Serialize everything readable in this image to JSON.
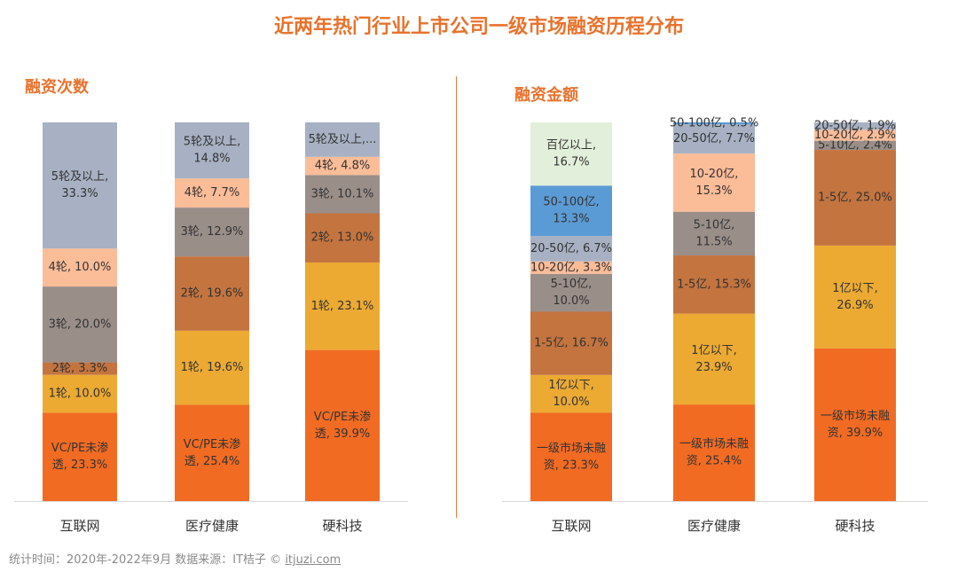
{
  "page": {
    "title": "近两年热门行业上市公司一级市场融资历程分布",
    "footer_prefix": "统计时间：2020年-2022年9月   数据来源：IT桔子 © ",
    "footer_link": "itjuzi.com"
  },
  "colors": {
    "accent": "#e8722c",
    "axis": "#d9d9d9",
    "label": "#333333"
  },
  "chart_data": [
    {
      "type": "bar",
      "stacked": true,
      "percent": true,
      "title": "融资次数",
      "categories": [
        "互联网",
        "医疗健康",
        "硬科技"
      ],
      "series": [
        {
          "name": "VC/PE未渗透",
          "color": "#f26b22",
          "values": [
            23.3,
            25.4,
            39.9
          ],
          "labels": [
            [
              "VC/PE未渗",
              "透, 23.3%"
            ],
            [
              "VC/PE未渗",
              "透, 25.4%"
            ],
            [
              "VC/PE未渗",
              "透, 39.9%"
            ]
          ]
        },
        {
          "name": "1轮",
          "color": "#ecaa33",
          "values": [
            10.0,
            19.6,
            23.1
          ],
          "labels": [
            [
              "1轮, 10.0%"
            ],
            [
              "1轮, 19.6%"
            ],
            [
              "1轮, 23.1%"
            ]
          ]
        },
        {
          "name": "2轮",
          "color": "#c4743f",
          "values": [
            3.3,
            19.6,
            13.0
          ],
          "labels": [
            [
              "2轮, 3.3%"
            ],
            [
              "2轮, 19.6%"
            ],
            [
              "2轮, 13.0%"
            ]
          ]
        },
        {
          "name": "3轮",
          "color": "#9a8e89",
          "values": [
            20.0,
            12.9,
            10.1
          ],
          "labels": [
            [
              "3轮, 20.0%"
            ],
            [
              "3轮, 12.9%"
            ],
            [
              "3轮, 10.1%"
            ]
          ]
        },
        {
          "name": "4轮",
          "color": "#fbbc98",
          "values": [
            10.0,
            7.7,
            4.8
          ],
          "labels": [
            [
              "4轮, 10.0%"
            ],
            [
              "4轮, 7.7%"
            ],
            [
              "4轮, 4.8%"
            ]
          ]
        },
        {
          "name": "5轮及以上",
          "color": "#a7b1c3",
          "values": [
            33.3,
            14.8,
            9.1
          ],
          "labels": [
            [
              "5轮及以上,",
              "33.3%"
            ],
            [
              "5轮及以上,",
              "14.8%"
            ],
            [
              "5轮及以上,..."
            ]
          ]
        }
      ]
    },
    {
      "type": "bar",
      "stacked": true,
      "percent": true,
      "title": "融资金额",
      "categories": [
        "互联网",
        "医疗健康",
        "硬科技"
      ],
      "series": [
        {
          "name": "一级市场未融资",
          "color": "#f26b22",
          "values": [
            23.3,
            25.4,
            39.9
          ],
          "labels": [
            [
              "一级市场未融",
              "资, 23.3%"
            ],
            [
              "一级市场未融",
              "资, 25.4%"
            ],
            [
              "一级市场未融",
              "资, 39.9%"
            ]
          ]
        },
        {
          "name": "1亿以下",
          "color": "#ecaa33",
          "values": [
            10.0,
            23.9,
            26.9
          ],
          "labels": [
            [
              "1亿以下,",
              "10.0%"
            ],
            [
              "1亿以下,",
              "23.9%"
            ],
            [
              "1亿以下,",
              "26.9%"
            ]
          ]
        },
        {
          "name": "1-5亿",
          "color": "#c4743f",
          "values": [
            16.7,
            15.3,
            25.0
          ],
          "labels": [
            [
              "1-5亿, 16.7%"
            ],
            [
              "1-5亿, 15.3%"
            ],
            [
              "1-5亿, 25.0%"
            ]
          ]
        },
        {
          "name": "5-10亿",
          "color": "#9a8e89",
          "values": [
            10.0,
            11.5,
            2.4
          ],
          "labels": [
            [
              "5-10亿,",
              "10.0%"
            ],
            [
              "5-10亿,",
              "11.5%"
            ],
            [
              "5-10亿, 2.4%"
            ]
          ]
        },
        {
          "name": "10-20亿",
          "color": "#fbbc98",
          "values": [
            3.3,
            15.3,
            2.9
          ],
          "labels": [
            [
              "10-20亿, 3.3%"
            ],
            [
              "10-20亿,",
              "15.3%"
            ],
            [
              "10-20亿, 2.9%"
            ]
          ]
        },
        {
          "name": "20-50亿",
          "color": "#a7b1c3",
          "values": [
            6.7,
            7.7,
            1.9
          ],
          "labels": [
            [
              "20-50亿, 6.7%"
            ],
            [
              "20-50亿, 7.7%"
            ],
            [
              "20-50亿, 1.9%"
            ]
          ]
        },
        {
          "name": "50-100亿",
          "color": "#5b9bd5",
          "values": [
            13.3,
            0.5,
            0
          ],
          "labels": [
            [
              "50-100亿,",
              "13.3%"
            ],
            [
              "50-100亿, 0.5%"
            ],
            []
          ]
        },
        {
          "name": "百亿以上",
          "color": "#e2efda",
          "values": [
            16.7,
            0,
            0
          ],
          "labels": [
            [
              "百亿以上,",
              "16.7%"
            ],
            [],
            []
          ]
        }
      ]
    }
  ]
}
